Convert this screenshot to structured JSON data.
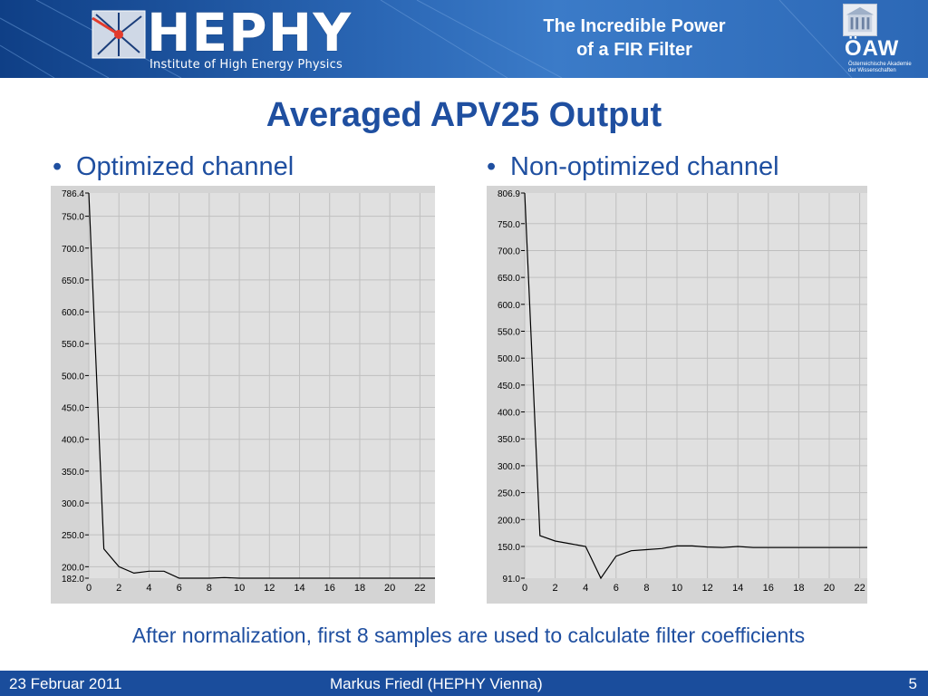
{
  "header": {
    "logo_text": "HEPHY",
    "logo_subtitle": "Institute of High Energy Physics",
    "talk_title_line1": "The Incredible Power",
    "talk_title_line2": "of a FIR Filter",
    "academy_abbr": "ÖAW",
    "academy_name_line1": "Österreichische Akademie",
    "academy_name_line2": "der Wissenschaften"
  },
  "slide": {
    "title": "Averaged APV25 Output",
    "bullet_symbol": "•",
    "bullet_left": "Optimized channel",
    "bullet_right": "Non-optimized channel",
    "caption": "After normalization, first 8 samples are used to calculate filter coefficients"
  },
  "footer": {
    "date": "23 Februar 2011",
    "author": "Markus Friedl (HEPHY Vienna)",
    "page": "5"
  },
  "colors": {
    "banner_blue": "#2a66b4",
    "title_blue": "#1f4fa0",
    "plot_bg": "#e0e0e0",
    "plot_frame": "#d4d4d4",
    "grid": "#bfbfbf"
  },
  "chart_data": [
    {
      "type": "line",
      "ylim": [
        182.0,
        786.4
      ],
      "xlim": [
        0,
        23
      ],
      "x_ticks": [
        0,
        2,
        4,
        6,
        8,
        10,
        12,
        14,
        16,
        18,
        20,
        22
      ],
      "y_ticks": [
        786.4,
        750.0,
        700.0,
        650.0,
        600.0,
        550.0,
        500.0,
        450.0,
        400.0,
        350.0,
        300.0,
        250.0,
        200.0,
        182.0
      ],
      "y_tick_labels": [
        "786.4",
        "750.0",
        "700.0",
        "650.0",
        "600.0",
        "550.0",
        "500.0",
        "450.0",
        "400.0",
        "350.0",
        "300.0",
        "250.0",
        "200.0",
        "182.0"
      ],
      "grid": true,
      "x": [
        0,
        1,
        2,
        3,
        4,
        5,
        6,
        7,
        8,
        9,
        10,
        11,
        12,
        13,
        14,
        15,
        16,
        17,
        18,
        19,
        20,
        21,
        22,
        23
      ],
      "y": [
        786.4,
        228,
        200,
        190,
        193,
        193,
        182,
        182,
        182,
        183,
        182,
        182,
        182,
        182,
        182,
        182,
        182,
        182,
        182,
        182,
        182,
        182,
        182,
        182
      ]
    },
    {
      "type": "line",
      "ylim": [
        91.0,
        806.9
      ],
      "xlim": [
        0,
        22.5
      ],
      "x_ticks": [
        0,
        2,
        4,
        6,
        8,
        10,
        12,
        14,
        16,
        18,
        20,
        22
      ],
      "y_ticks": [
        806.9,
        750.0,
        700.0,
        650.0,
        600.0,
        550.0,
        500.0,
        450.0,
        400.0,
        350.0,
        300.0,
        250.0,
        200.0,
        150.0,
        91.0
      ],
      "y_tick_labels": [
        "806.9",
        "750.0",
        "700.0",
        "650.0",
        "600.0",
        "550.0",
        "500.0",
        "450.0",
        "400.0",
        "350.0",
        "300.0",
        "250.0",
        "200.0",
        "150.0",
        "91.0"
      ],
      "grid": true,
      "x": [
        0,
        1,
        2,
        3,
        4,
        5,
        6,
        7,
        8,
        9,
        10,
        11,
        12,
        13,
        14,
        15,
        16,
        17,
        18,
        19,
        20,
        21,
        22,
        22.5
      ],
      "y": [
        806.9,
        170,
        160,
        155,
        150,
        91,
        132,
        142,
        144,
        146,
        151,
        151,
        149,
        148,
        150,
        148,
        148,
        148,
        148,
        148,
        148,
        148,
        148,
        148
      ]
    }
  ]
}
